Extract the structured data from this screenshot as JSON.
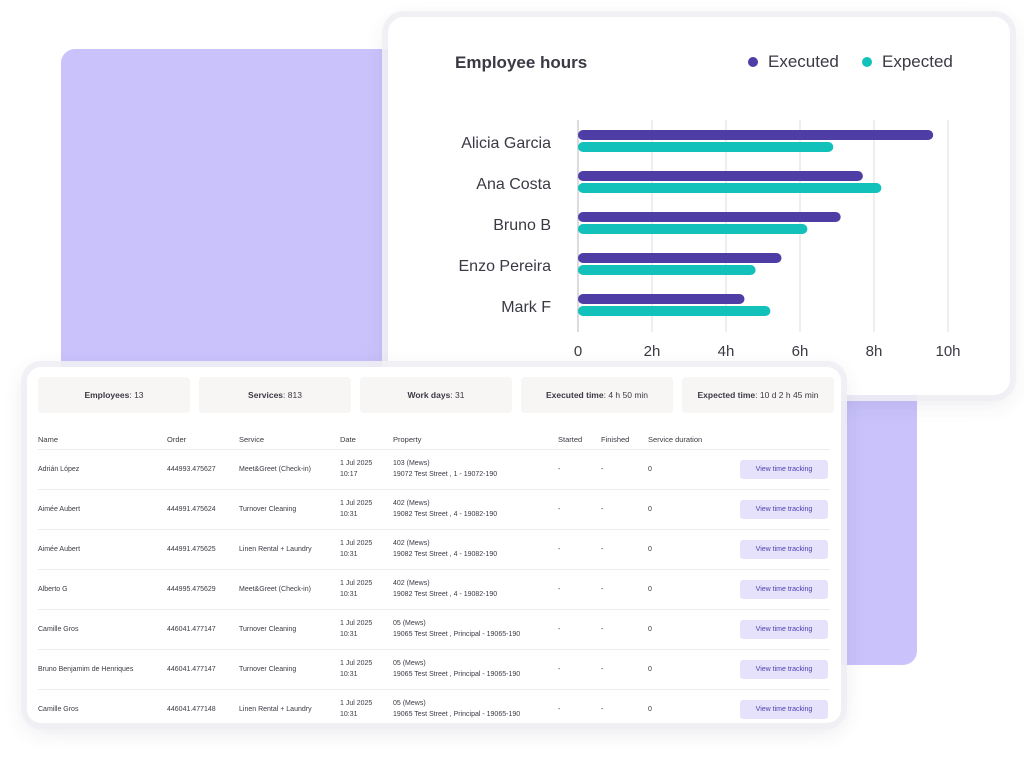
{
  "chart": {
    "title": "Employee hours",
    "legend": [
      {
        "label": "Executed",
        "color": "#4f3da6"
      },
      {
        "label": "Expected",
        "color": "#13c1bb"
      }
    ]
  },
  "chart_data": {
    "type": "bar",
    "orientation": "horizontal",
    "title": "Employee hours",
    "categories": [
      "Alicia Garcia",
      "Ana Costa",
      "Bruno B",
      "Enzo Pereira",
      "Mark F"
    ],
    "series": [
      {
        "name": "Executed",
        "color": "#4f3da6",
        "values": [
          9.6,
          7.7,
          7.1,
          5.5,
          4.5
        ]
      },
      {
        "name": "Expected",
        "color": "#13c1bb",
        "values": [
          6.9,
          8.2,
          6.2,
          4.8,
          5.2
        ]
      }
    ],
    "x_ticks": [
      "0",
      "2h",
      "4h",
      "6h",
      "8h",
      "10h"
    ],
    "xlim": [
      0,
      10
    ],
    "grid": true,
    "legend_position": "top-right"
  },
  "stats": [
    {
      "label": "Employees",
      "value": "13"
    },
    {
      "label": "Services",
      "value": "813"
    },
    {
      "label": "Work days",
      "value": "31"
    },
    {
      "label": "Executed time",
      "value": "4 h 50 min"
    },
    {
      "label": "Expected time",
      "value": "10 d 2 h 45 min"
    }
  ],
  "table": {
    "headers": {
      "name": "Name",
      "order": "Order",
      "service": "Service",
      "date": "Date",
      "property": "Property",
      "started": "Started",
      "finished": "Finished",
      "duration": "Service duration"
    },
    "rows": [
      {
        "name": "Adrián López",
        "order": "444993.475627",
        "service": "Meet&Greet (Check-in)",
        "date": "1 Jul 2025",
        "time": "10:17",
        "property1": "103 (Mews)",
        "property2": "19072 Test Street , 1 - 19072-190",
        "started": "-",
        "finished": "-",
        "duration": "0",
        "action": "View time tracking"
      },
      {
        "name": "Aimée Aubert",
        "order": "444991.475624",
        "service": "Turnover Cleaning",
        "date": "1 Jul 2025",
        "time": "10:31",
        "property1": "402 (Mews)",
        "property2": "19082 Test Street , 4 - 19082-190",
        "started": "-",
        "finished": "-",
        "duration": "0",
        "action": "View time tracking"
      },
      {
        "name": "Aimée Aubert",
        "order": "444991.475625",
        "service": "Linen Rental + Laundry",
        "date": "1 Jul 2025",
        "time": "10:31",
        "property1": "402 (Mews)",
        "property2": "19082 Test Street , 4 - 19082-190",
        "started": "-",
        "finished": "-",
        "duration": "0",
        "action": "View time tracking"
      },
      {
        "name": "Alberto G",
        "order": "444995.475629",
        "service": "Meet&Greet (Check-in)",
        "date": "1 Jul 2025",
        "time": "10:31",
        "property1": "402 (Mews)",
        "property2": "19082 Test Street , 4 - 19082-190",
        "started": "-",
        "finished": "-",
        "duration": "0",
        "action": "View time tracking"
      },
      {
        "name": "Camille Gros",
        "order": "446041.477147",
        "service": "Turnover Cleaning",
        "date": "1 Jul 2025",
        "time": "10:31",
        "property1": "05 (Mews)",
        "property2": "19065 Test Street , Principal - 19065-190",
        "started": "-",
        "finished": "-",
        "duration": "0",
        "action": "View time tracking"
      },
      {
        "name": "Bruno Benjamim de Henriques",
        "order": "446041.477147",
        "service": "Turnover Cleaning",
        "date": "1 Jul 2025",
        "time": "10:31",
        "property1": "05 (Mews)",
        "property2": "19065 Test Street , Principal - 19065-190",
        "started": "-",
        "finished": "-",
        "duration": "0",
        "action": "View time tracking"
      },
      {
        "name": "Camille Gros",
        "order": "446041.477148",
        "service": "Linen Rental + Laundry",
        "date": "1 Jul 2025",
        "time": "10:31",
        "property1": "05 (Mews)",
        "property2": "19065 Test Street , Principal - 19065-190",
        "started": "-",
        "finished": "-",
        "duration": "0",
        "action": "View time tracking"
      }
    ]
  }
}
